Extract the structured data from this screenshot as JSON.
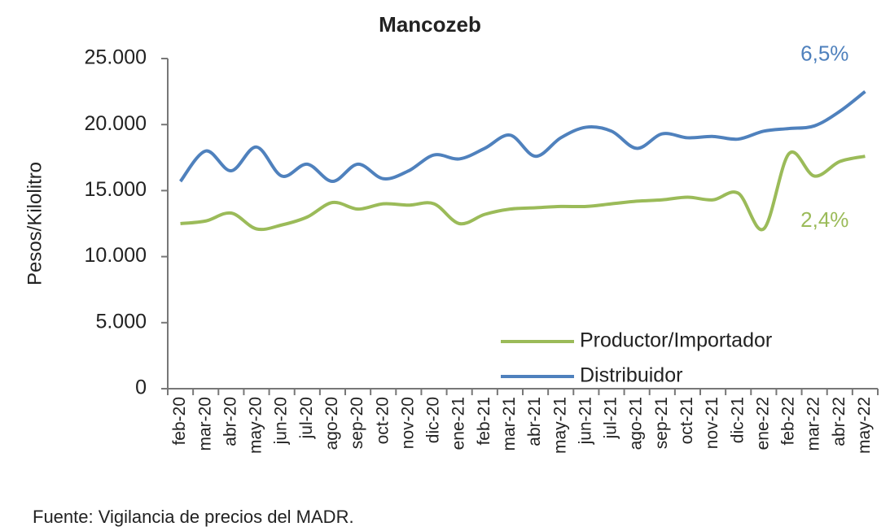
{
  "chart_data": {
    "type": "line",
    "title": "Mancozeb",
    "y_label": "Pesos/Kilolitro",
    "categories": [
      "feb-20",
      "mar-20",
      "abr-20",
      "may-20",
      "jun-20",
      "jul-20",
      "ago-20",
      "sep-20",
      "oct-20",
      "nov-20",
      "dic-20",
      "ene-21",
      "feb-21",
      "mar-21",
      "abr-21",
      "may-21",
      "jun-21",
      "jul-21",
      "ago-21",
      "sep-21",
      "oct-21",
      "nov-21",
      "dic-21",
      "ene-22",
      "feb-22",
      "mar-22",
      "abr-22",
      "may-22"
    ],
    "series": [
      {
        "name": "Productor/Importador",
        "color": "#9bbb59",
        "values": [
          12500,
          12700,
          13300,
          12100,
          12400,
          13000,
          14100,
          13600,
          14000,
          13900,
          14000,
          12500,
          13200,
          13600,
          13700,
          13800,
          13800,
          14000,
          14200,
          14300,
          14500,
          14300,
          14800,
          12100,
          17800,
          16100,
          17200,
          17600
        ]
      },
      {
        "name": "Distribuidor",
        "color": "#4f81bd",
        "values": [
          15700,
          18000,
          16500,
          18300,
          16100,
          17000,
          15700,
          17000,
          15900,
          16500,
          17700,
          17400,
          18200,
          19200,
          17600,
          19000,
          19800,
          19500,
          18200,
          19300,
          19000,
          19100,
          18900,
          19500,
          19700,
          19900,
          21000,
          22500
        ]
      }
    ],
    "annotations": [
      {
        "text": "6,5%",
        "series": 1
      },
      {
        "text": "2,4%",
        "series": 0
      }
    ],
    "ylim": [
      0,
      25000
    ],
    "yticks": [
      0,
      {
        "value": 5000,
        "label": "5.000"
      },
      {
        "value": 10000,
        "label": "10.000"
      },
      {
        "value": 15000,
        "label": "15.000"
      },
      {
        "value": 20000,
        "label": "20.000"
      },
      {
        "value": 25000,
        "label": "25.000"
      }
    ],
    "grid": false,
    "legend": "lower right",
    "source": "Fuente:  Vigilancia de precios del MADR."
  }
}
